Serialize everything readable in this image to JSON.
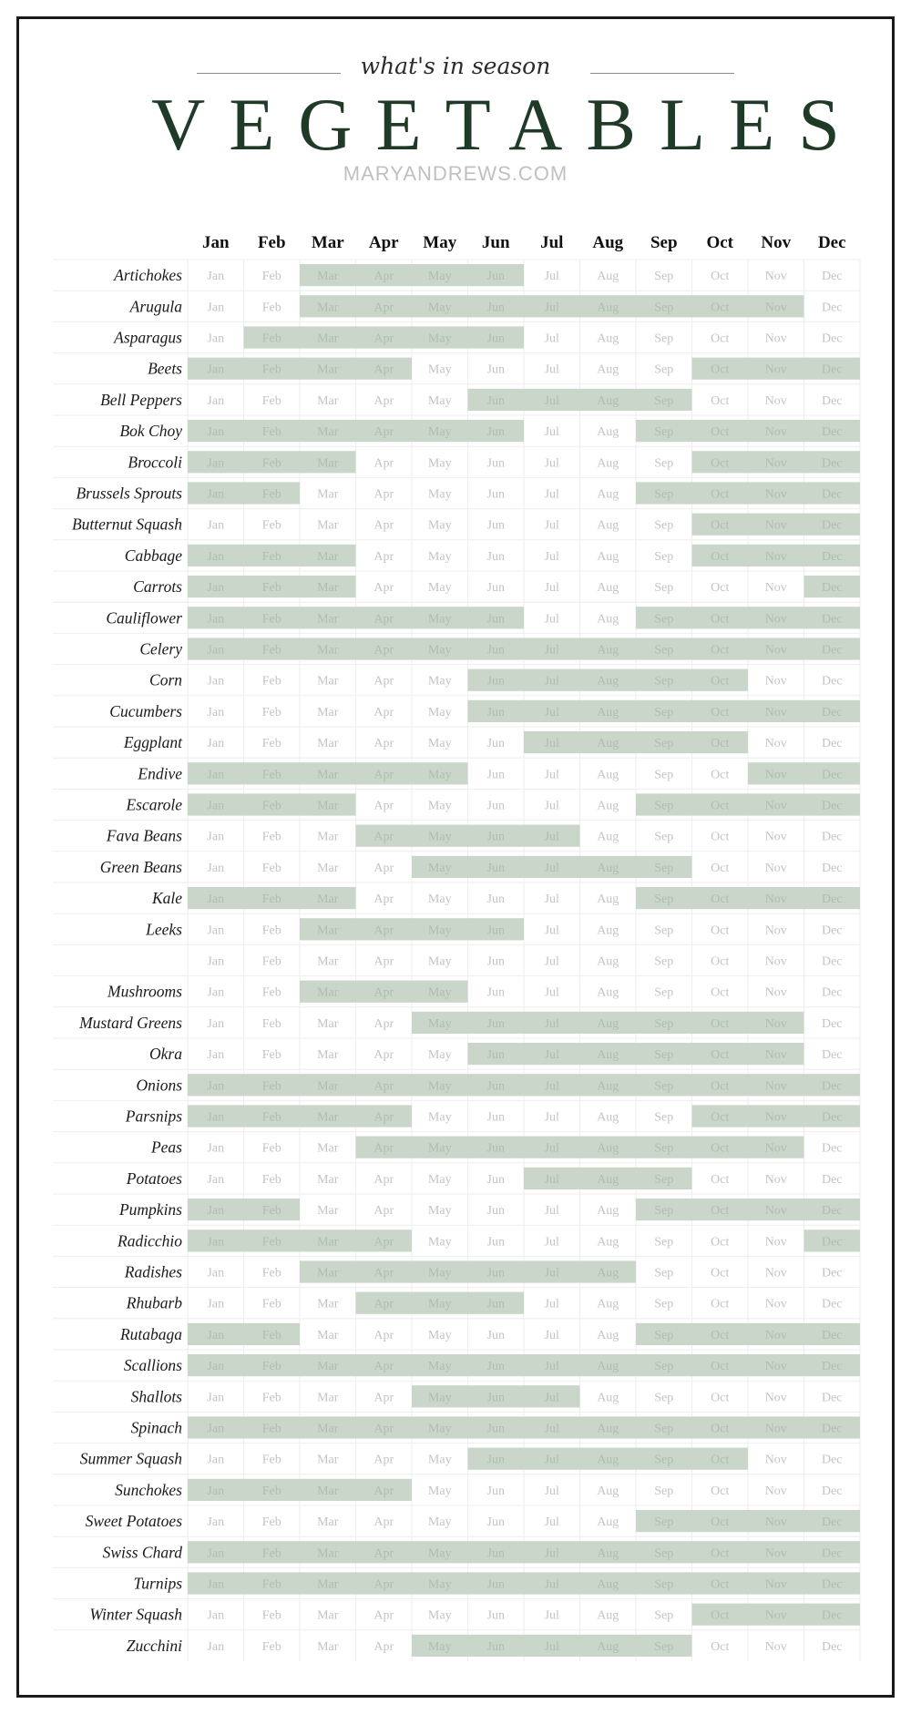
{
  "header": {
    "subtitle": "what's in season",
    "title": "VEGETABLES",
    "site": "MARYANDREWS.COM"
  },
  "colors": {
    "season_fill": "#c9d6c9",
    "title_green": "#1f3a26",
    "grid_line": "#eeeeee"
  },
  "chart_data": {
    "type": "table",
    "title": "VEGETABLES",
    "subtitle": "what's in season",
    "months": [
      "Jan",
      "Feb",
      "Mar",
      "Apr",
      "May",
      "Jun",
      "Jul",
      "Aug",
      "Sep",
      "Oct",
      "Nov",
      "Dec"
    ],
    "rows": [
      {
        "name": "Artichokes",
        "months": [
          "Mar",
          "Apr",
          "May",
          "Jun"
        ]
      },
      {
        "name": "Arugula",
        "months": [
          "Mar",
          "Apr",
          "May",
          "Jun",
          "Jul",
          "Aug",
          "Sep",
          "Oct",
          "Nov"
        ]
      },
      {
        "name": "Asparagus",
        "months": [
          "Feb",
          "Mar",
          "Apr",
          "May",
          "Jun"
        ]
      },
      {
        "name": "Beets",
        "months": [
          "Jan",
          "Feb",
          "Mar",
          "Apr",
          "Oct",
          "Nov",
          "Dec"
        ]
      },
      {
        "name": "Bell Peppers",
        "months": [
          "Jun",
          "Jul",
          "Aug",
          "Sep"
        ]
      },
      {
        "name": "Bok Choy",
        "months": [
          "Jan",
          "Feb",
          "Mar",
          "Apr",
          "May",
          "Jun",
          "Sep",
          "Oct",
          "Nov",
          "Dec"
        ]
      },
      {
        "name": "Broccoli",
        "months": [
          "Jan",
          "Feb",
          "Mar",
          "Oct",
          "Nov",
          "Dec"
        ]
      },
      {
        "name": "Brussels Sprouts",
        "months": [
          "Jan",
          "Feb",
          "Sep",
          "Oct",
          "Nov",
          "Dec"
        ]
      },
      {
        "name": "Butternut Squash",
        "months": [
          "Oct",
          "Nov",
          "Dec"
        ]
      },
      {
        "name": "Cabbage",
        "months": [
          "Jan",
          "Feb",
          "Mar",
          "Oct",
          "Nov",
          "Dec"
        ]
      },
      {
        "name": "Carrots",
        "months": [
          "Jan",
          "Feb",
          "Mar",
          "Dec"
        ]
      },
      {
        "name": "Cauliflower",
        "months": [
          "Jan",
          "Feb",
          "Mar",
          "Apr",
          "May",
          "Jun",
          "Sep",
          "Oct",
          "Nov",
          "Dec"
        ]
      },
      {
        "name": "Celery",
        "months": [
          "Jan",
          "Feb",
          "Mar",
          "Apr",
          "May",
          "Jun",
          "Jul",
          "Aug",
          "Sep",
          "Oct",
          "Nov",
          "Dec"
        ]
      },
      {
        "name": "Corn",
        "months": [
          "Jun",
          "Jul",
          "Aug",
          "Sep",
          "Oct"
        ]
      },
      {
        "name": "Cucumbers",
        "months": [
          "Jun",
          "Jul",
          "Aug",
          "Sep",
          "Oct",
          "Nov",
          "Dec"
        ]
      },
      {
        "name": "Eggplant",
        "months": [
          "Jul",
          "Aug",
          "Sep",
          "Oct"
        ]
      },
      {
        "name": "Endive",
        "months": [
          "Jan",
          "Feb",
          "Mar",
          "Apr",
          "May",
          "Nov",
          "Dec"
        ]
      },
      {
        "name": "Escarole",
        "months": [
          "Jan",
          "Feb",
          "Mar",
          "Sep",
          "Oct",
          "Nov",
          "Dec"
        ]
      },
      {
        "name": "Fava Beans",
        "months": [
          "Apr",
          "May",
          "Jun",
          "Jul"
        ]
      },
      {
        "name": "Green Beans",
        "months": [
          "May",
          "Jun",
          "Jul",
          "Aug",
          "Sep"
        ]
      },
      {
        "name": "Kale",
        "months": [
          "Jan",
          "Feb",
          "Mar",
          "Sep",
          "Oct",
          "Nov",
          "Dec"
        ]
      },
      {
        "name": "Leeks",
        "months": [
          "Mar",
          "Apr",
          "May",
          "Jun"
        ]
      },
      {
        "name": "",
        "months": []
      },
      {
        "name": "Mushrooms",
        "months": [
          "Mar",
          "Apr",
          "May"
        ]
      },
      {
        "name": "Mustard Greens",
        "months": [
          "May",
          "Jun",
          "Jul",
          "Aug",
          "Sep",
          "Oct",
          "Nov"
        ]
      },
      {
        "name": "Okra",
        "months": [
          "Jun",
          "Jul",
          "Aug",
          "Sep",
          "Oct",
          "Nov"
        ]
      },
      {
        "name": "Onions",
        "months": [
          "Jan",
          "Feb",
          "Mar",
          "Apr",
          "May",
          "Jun",
          "Jul",
          "Aug",
          "Sep",
          "Oct",
          "Nov",
          "Dec"
        ]
      },
      {
        "name": "Parsnips",
        "months": [
          "Jan",
          "Feb",
          "Mar",
          "Apr",
          "Oct",
          "Nov",
          "Dec"
        ]
      },
      {
        "name": "Peas",
        "months": [
          "Apr",
          "May",
          "Jun",
          "Jul",
          "Aug",
          "Sep",
          "Oct",
          "Nov"
        ]
      },
      {
        "name": "Potatoes",
        "months": [
          "Jul",
          "Aug",
          "Sep"
        ]
      },
      {
        "name": "Pumpkins",
        "months": [
          "Jan",
          "Feb",
          "Sep",
          "Oct",
          "Nov",
          "Dec"
        ]
      },
      {
        "name": "Radicchio",
        "months": [
          "Jan",
          "Feb",
          "Mar",
          "Apr",
          "Dec"
        ]
      },
      {
        "name": "Radishes",
        "months": [
          "Mar",
          "Apr",
          "May",
          "Jun",
          "Jul",
          "Aug"
        ]
      },
      {
        "name": "Rhubarb",
        "months": [
          "Apr",
          "May",
          "Jun"
        ]
      },
      {
        "name": "Rutabaga",
        "months": [
          "Jan",
          "Feb",
          "Sep",
          "Oct",
          "Nov",
          "Dec"
        ]
      },
      {
        "name": "Scallions",
        "months": [
          "Jan",
          "Feb",
          "Mar",
          "Apr",
          "May",
          "Jun",
          "Jul",
          "Aug",
          "Sep",
          "Oct",
          "Nov",
          "Dec"
        ]
      },
      {
        "name": "Shallots",
        "months": [
          "May",
          "Jun",
          "Jul"
        ]
      },
      {
        "name": "Spinach",
        "months": [
          "Jan",
          "Feb",
          "Mar",
          "Apr",
          "May",
          "Jun",
          "Jul",
          "Aug",
          "Sep",
          "Oct",
          "Nov",
          "Dec"
        ]
      },
      {
        "name": "Summer Squash",
        "months": [
          "Jun",
          "Jul",
          "Aug",
          "Sep",
          "Oct"
        ]
      },
      {
        "name": "Sunchokes",
        "months": [
          "Jan",
          "Feb",
          "Mar",
          "Apr"
        ]
      },
      {
        "name": "Sweet Potatoes",
        "months": [
          "Sep",
          "Oct",
          "Nov",
          "Dec"
        ]
      },
      {
        "name": "Swiss Chard",
        "months": [
          "Jan",
          "Feb",
          "Mar",
          "Apr",
          "May",
          "Jun",
          "Jul",
          "Aug",
          "Sep",
          "Oct",
          "Nov",
          "Dec"
        ]
      },
      {
        "name": "Turnips",
        "months": [
          "Jan",
          "Feb",
          "Mar",
          "Apr",
          "May",
          "Jun",
          "Jul",
          "Aug",
          "Sep",
          "Oct",
          "Nov",
          "Dec"
        ]
      },
      {
        "name": "Winter Squash",
        "months": [
          "Oct",
          "Nov",
          "Dec"
        ]
      },
      {
        "name": "Zucchini",
        "months": [
          "May",
          "Jun",
          "Jul",
          "Aug",
          "Sep"
        ]
      }
    ]
  }
}
